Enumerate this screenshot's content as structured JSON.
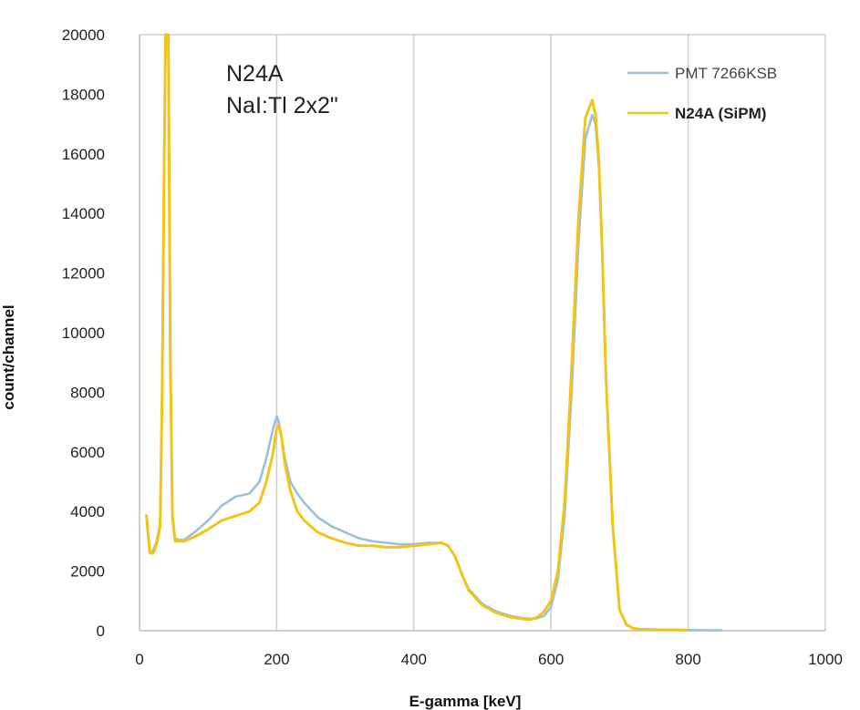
{
  "chart_data": {
    "type": "line",
    "title": "",
    "xlabel": "E-gamma [keV]",
    "ylabel": "count/channel",
    "xlim": [
      0,
      1000
    ],
    "ylim": [
      0,
      20000
    ],
    "x_ticks": [
      "0",
      "200",
      "400",
      "600",
      "800",
      "1000"
    ],
    "y_ticks": [
      "0",
      "2000",
      "4000",
      "6000",
      "8000",
      "10000",
      "12000",
      "14000",
      "16000",
      "18000",
      "20000"
    ],
    "grid": "vertical",
    "legend_position": "top-right",
    "annotations": [
      "N24A",
      "NaI:Tl 2x2\""
    ],
    "series": [
      {
        "name": "PMT 7266KSB",
        "color": "#9dbfdc",
        "x": [
          10,
          15,
          20,
          25,
          30,
          33,
          36,
          38,
          40,
          42,
          45,
          48,
          52,
          57,
          65,
          80,
          100,
          120,
          140,
          160,
          175,
          185,
          195,
          200,
          203,
          207,
          212,
          220,
          230,
          240,
          260,
          280,
          300,
          320,
          340,
          360,
          380,
          400,
          420,
          440,
          450,
          460,
          470,
          480,
          500,
          520,
          540,
          560,
          570,
          580,
          590,
          600,
          610,
          620,
          630,
          640,
          650,
          660,
          665,
          670,
          675,
          680,
          690,
          700,
          710,
          720,
          730,
          760,
          800,
          850
        ],
        "y": [
          3900,
          2600,
          2700,
          3000,
          3600,
          8000,
          16000,
          20000,
          20000,
          20000,
          9000,
          3900,
          3100,
          3050,
          3050,
          3300,
          3700,
          4200,
          4500,
          4600,
          5000,
          5800,
          6800,
          7200,
          7000,
          6500,
          5800,
          5000,
          4600,
          4300,
          3800,
          3500,
          3300,
          3100,
          3000,
          2950,
          2900,
          2900,
          2950,
          2950,
          2850,
          2500,
          1900,
          1400,
          900,
          650,
          500,
          420,
          400,
          420,
          500,
          800,
          1700,
          3900,
          8000,
          13000,
          16500,
          17300,
          17000,
          15500,
          12500,
          8500,
          3500,
          700,
          200,
          80,
          50,
          30,
          20,
          10
        ]
      },
      {
        "name": "N24A (SiPM)",
        "color": "#f0c419",
        "x": [
          10,
          15,
          20,
          25,
          30,
          33,
          36,
          38,
          40,
          42,
          45,
          48,
          52,
          57,
          65,
          80,
          100,
          120,
          140,
          160,
          175,
          185,
          195,
          200,
          203,
          207,
          212,
          220,
          230,
          240,
          260,
          280,
          300,
          320,
          340,
          360,
          380,
          400,
          420,
          440,
          450,
          460,
          470,
          480,
          500,
          520,
          540,
          560,
          570,
          580,
          590,
          600,
          610,
          620,
          630,
          640,
          650,
          660,
          665,
          670,
          675,
          680,
          690,
          700,
          710,
          720,
          730,
          760,
          800
        ],
        "y": [
          3900,
          2600,
          2600,
          2900,
          3500,
          8000,
          16000,
          20000,
          20000,
          20000,
          9000,
          3800,
          3000,
          3000,
          3000,
          3150,
          3400,
          3700,
          3850,
          4000,
          4300,
          5000,
          6000,
          6800,
          6900,
          6500,
          5600,
          4700,
          4000,
          3700,
          3300,
          3100,
          2950,
          2850,
          2850,
          2800,
          2800,
          2850,
          2900,
          2950,
          2850,
          2500,
          1900,
          1350,
          850,
          600,
          460,
          390,
          380,
          450,
          650,
          1000,
          2000,
          4300,
          8800,
          13800,
          17200,
          17800,
          17300,
          15700,
          12500,
          8500,
          3500,
          700,
          200,
          80,
          50,
          30,
          20
        ]
      }
    ]
  }
}
